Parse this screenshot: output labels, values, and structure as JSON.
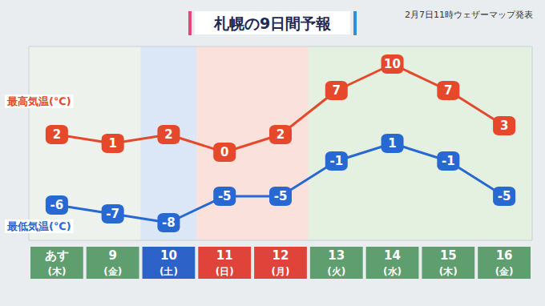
{
  "chart_data": {
    "type": "line",
    "title": "札幌の9日間予報",
    "subtitle": "2月7日11時ウェザーマップ発表",
    "categories": [
      "あす\n(木)",
      "9\n(金)",
      "10\n(土)",
      "11\n(日)",
      "12\n(月)",
      "13\n(火)",
      "14\n(水)",
      "15\n(木)",
      "16\n(金)"
    ],
    "series": [
      {
        "name": "最高気温(℃)",
        "color": "#e5482b",
        "values": [
          2,
          1,
          2,
          0,
          2,
          7,
          10,
          7,
          3
        ]
      },
      {
        "name": "最低気温(℃)",
        "color": "#2768d2",
        "values": [
          -6,
          -7,
          -8,
          -5,
          -5,
          -1,
          1,
          -1,
          -5
        ]
      }
    ],
    "ylim": [
      -10,
      12
    ],
    "data_labels": true,
    "marker": "square",
    "tick_labels": "x",
    "grid": false
  }
}
